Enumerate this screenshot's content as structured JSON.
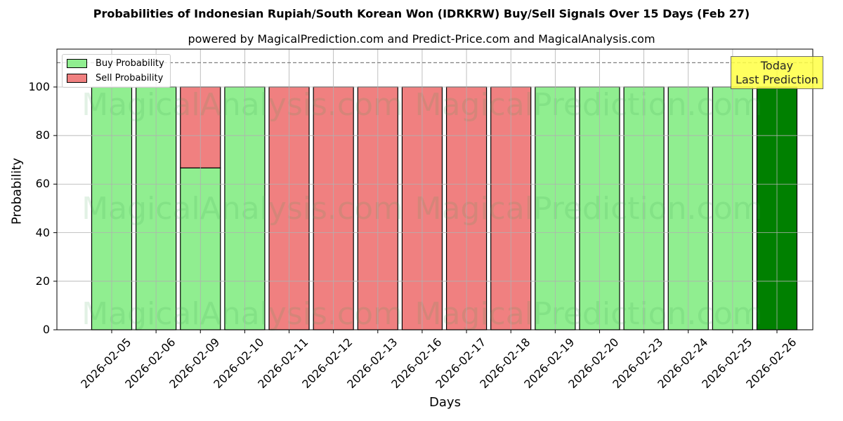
{
  "chart_data": {
    "type": "bar",
    "stacked": true,
    "title": "Probabilities of Indonesian Rupiah/South Korean Won (IDRKRW) Buy/Sell Signals Over 15 Days (Feb 27)",
    "subtitle": "powered by MagicalPrediction.com and Predict-Price.com and MagicalAnalysis.com",
    "xlabel": "Days",
    "ylabel": "Probability",
    "ylim": [
      0,
      115.6
    ],
    "yticks": [
      "0",
      "20",
      "40",
      "60",
      "80",
      "100"
    ],
    "grid": true,
    "legend_position": "upper left",
    "categories": [
      "2026-02-05",
      "2026-02-06",
      "2026-02-09",
      "2026-02-10",
      "2026-02-11",
      "2026-02-12",
      "2026-02-13",
      "2026-02-16",
      "2026-02-17",
      "2026-02-18",
      "2026-02-19",
      "2026-02-20",
      "2026-02-23",
      "2026-02-24",
      "2026-02-25",
      "2026-02-26"
    ],
    "series": [
      {
        "name": "Buy Probability",
        "color": "#90ee90",
        "values": [
          100,
          100,
          66.67,
          100,
          0,
          0,
          0,
          0,
          0,
          0,
          100,
          100,
          100,
          100,
          100,
          100
        ]
      },
      {
        "name": "Sell Probability",
        "color": "#f08080",
        "values": [
          0,
          0,
          33.33,
          0,
          100,
          100,
          100,
          100,
          100,
          100,
          0,
          0,
          0,
          0,
          0,
          0
        ]
      }
    ],
    "highlight": {
      "category": "2026-02-26",
      "color": "#008000"
    },
    "reference_line": {
      "y": 110,
      "style": "dashed",
      "color": "#808080"
    },
    "annotation": {
      "line1": "Today",
      "line2": "Last Prediction",
      "background": "#ffff44"
    },
    "watermarks": [
      "MagicalAnalysis.com",
      "MagicalPrediction.com"
    ]
  }
}
